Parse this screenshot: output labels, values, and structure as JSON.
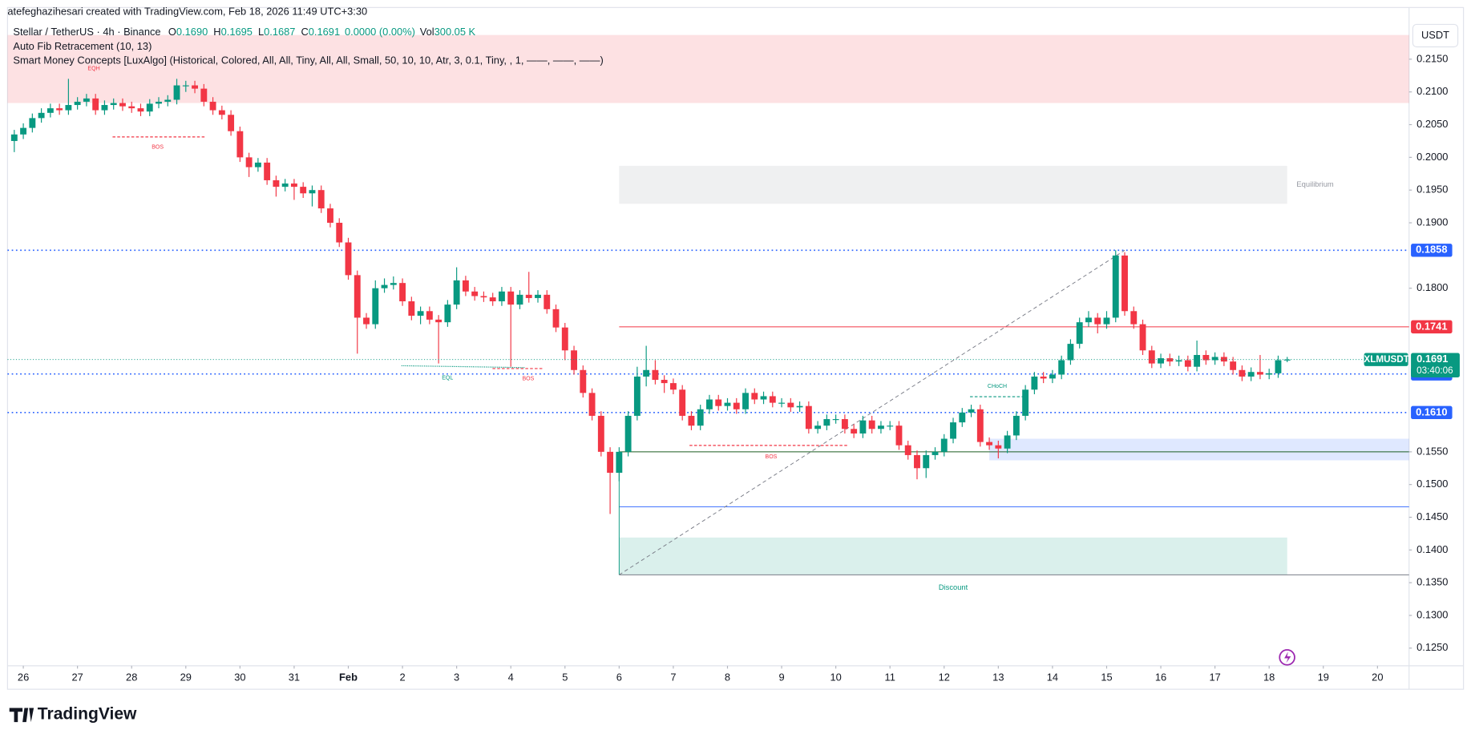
{
  "header": {
    "credit": "atefeghazihesari created with TradingView.com, Feb 18, 2026 11:49 UTC+3:30",
    "symbol": "Stellar / TetherUS · 4h · Binance",
    "ohlc": [
      {
        "key": "O",
        "value": "0.1690"
      },
      {
        "key": "H",
        "value": "0.1695"
      },
      {
        "key": "L",
        "value": "0.1687"
      },
      {
        "key": "C",
        "value": "0.1691"
      }
    ],
    "change": "0.0000 (0.00%)",
    "vol_key": "Vol",
    "vol": "300.05 K",
    "indicators": [
      "Auto Fib Retracement (10, 13)",
      "Smart Money Concepts [LuxAlgo] (Historical, Colored, All, All, Tiny, All, All, Small, 50, 10, 10, Atr, 3, 0.1, Tiny, , 1, ——, ——, ——)"
    ],
    "currency": "USDT"
  },
  "footer": {
    "logo": "TradingView"
  },
  "chart_data": {
    "type": "candlestick",
    "up_color": "#089981",
    "down_color": "#f23645",
    "xlim": [
      -7,
      614
    ],
    "ylim": [
      0.1223,
      0.2229
    ],
    "grid": false,
    "xticks": [
      {
        "value": 0,
        "label": "26"
      },
      {
        "value": 24,
        "label": "27"
      },
      {
        "value": 48,
        "label": "28"
      },
      {
        "value": 72,
        "label": "29"
      },
      {
        "value": 96,
        "label": "30"
      },
      {
        "value": 120,
        "label": "31"
      },
      {
        "value": 144,
        "label": "Feb"
      },
      {
        "value": 168,
        "label": "2"
      },
      {
        "value": 192,
        "label": "3"
      },
      {
        "value": 216,
        "label": "4"
      },
      {
        "value": 240,
        "label": "5"
      },
      {
        "value": 264,
        "label": "6"
      },
      {
        "value": 288,
        "label": "7"
      },
      {
        "value": 312,
        "label": "8"
      },
      {
        "value": 336,
        "label": "9"
      },
      {
        "value": 360,
        "label": "10"
      },
      {
        "value": 384,
        "label": "11"
      },
      {
        "value": 408,
        "label": "12"
      },
      {
        "value": 432,
        "label": "13"
      },
      {
        "value": 456,
        "label": "14"
      },
      {
        "value": 480,
        "label": "15"
      },
      {
        "value": 504,
        "label": "16"
      },
      {
        "value": 528,
        "label": "17"
      },
      {
        "value": 552,
        "label": "18"
      },
      {
        "value": 576,
        "label": "19"
      },
      {
        "value": 600,
        "label": "20"
      }
    ],
    "yticks": [
      {
        "value": 0.215,
        "label": "0.2150"
      },
      {
        "value": 0.21,
        "label": "0.2100"
      },
      {
        "value": 0.205,
        "label": "0.2050"
      },
      {
        "value": 0.2,
        "label": "0.2000"
      },
      {
        "value": 0.195,
        "label": "0.1950"
      },
      {
        "value": 0.19,
        "label": "0.1900"
      },
      {
        "value": 0.18,
        "label": "0.1800"
      },
      {
        "value": 0.155,
        "label": "0.1550"
      },
      {
        "value": 0.15,
        "label": "0.1500"
      },
      {
        "value": 0.145,
        "label": "0.1450"
      },
      {
        "value": 0.14,
        "label": "0.1400"
      },
      {
        "value": 0.135,
        "label": "0.1350"
      },
      {
        "value": 0.13,
        "label": "0.1300"
      },
      {
        "value": 0.125,
        "label": "0.1250"
      }
    ],
    "x": [
      -4,
      0,
      4,
      8,
      12,
      16,
      20,
      24,
      28,
      32,
      36,
      40,
      44,
      48,
      52,
      56,
      60,
      64,
      68,
      72,
      76,
      80,
      84,
      88,
      92,
      96,
      100,
      104,
      108,
      112,
      116,
      120,
      124,
      128,
      132,
      136,
      140,
      144,
      148,
      152,
      156,
      160,
      164,
      168,
      172,
      176,
      180,
      184,
      188,
      192,
      196,
      200,
      204,
      208,
      212,
      216,
      220,
      224,
      228,
      232,
      236,
      240,
      244,
      248,
      252,
      256,
      260,
      264,
      268,
      272,
      276,
      280,
      284,
      288,
      292,
      296,
      300,
      304,
      308,
      312,
      316,
      320,
      324,
      328,
      332,
      336,
      340,
      344,
      348,
      352,
      356,
      360,
      364,
      368,
      372,
      376,
      380,
      384,
      388,
      392,
      396,
      400,
      404,
      408,
      412,
      416,
      420,
      424,
      428,
      432,
      436,
      440,
      444,
      448,
      452,
      456,
      460,
      464,
      468,
      472,
      476,
      480,
      484,
      488,
      492,
      496,
      500,
      504,
      508,
      512,
      516,
      520,
      524,
      528,
      532,
      536,
      540,
      544,
      548,
      552,
      556,
      560
    ],
    "ohlc": [
      [
        0.2025,
        0.2042,
        0.2008,
        0.2035
      ],
      [
        0.2035,
        0.2052,
        0.2028,
        0.2045
      ],
      [
        0.2045,
        0.2067,
        0.2038,
        0.206
      ],
      [
        0.206,
        0.2075,
        0.2053,
        0.2068
      ],
      [
        0.2068,
        0.2082,
        0.2061,
        0.2075
      ],
      [
        0.2075,
        0.2082,
        0.2065,
        0.2072
      ],
      [
        0.2072,
        0.212,
        0.2065,
        0.208
      ],
      [
        0.208,
        0.2092,
        0.2073,
        0.2085
      ],
      [
        0.2085,
        0.2097,
        0.2078,
        0.209
      ],
      [
        0.209,
        0.2097,
        0.2065,
        0.2072
      ],
      [
        0.2072,
        0.2087,
        0.2065,
        0.208
      ],
      [
        0.208,
        0.209,
        0.2073,
        0.2083
      ],
      [
        0.2083,
        0.209,
        0.2071,
        0.2078
      ],
      [
        0.2078,
        0.2085,
        0.2068,
        0.2075
      ],
      [
        0.2075,
        0.2082,
        0.2063,
        0.207
      ],
      [
        0.207,
        0.2089,
        0.2063,
        0.2082
      ],
      [
        0.2082,
        0.2092,
        0.2075,
        0.2085
      ],
      [
        0.2085,
        0.2095,
        0.2078,
        0.2088
      ],
      [
        0.2088,
        0.212,
        0.2081,
        0.211
      ],
      [
        0.211,
        0.2117,
        0.21,
        0.211
      ],
      [
        0.211,
        0.2117,
        0.2098,
        0.2105
      ],
      [
        0.2105,
        0.2112,
        0.2078,
        0.2085
      ],
      [
        0.2085,
        0.2092,
        0.2065,
        0.2072
      ],
      [
        0.2072,
        0.2079,
        0.2058,
        0.2065
      ],
      [
        0.2065,
        0.2072,
        0.2033,
        0.204
      ],
      [
        0.204,
        0.2047,
        0.1993,
        0.2
      ],
      [
        0.2,
        0.2007,
        0.197,
        0.1985
      ],
      [
        0.1985,
        0.1999,
        0.1978,
        0.1992
      ],
      [
        0.1992,
        0.1999,
        0.1958,
        0.1965
      ],
      [
        0.1965,
        0.1972,
        0.194,
        0.1955
      ],
      [
        0.1955,
        0.1967,
        0.1948,
        0.196
      ],
      [
        0.196,
        0.1967,
        0.1935,
        0.1955
      ],
      [
        0.1955,
        0.1962,
        0.1938,
        0.1945
      ],
      [
        0.1945,
        0.1957,
        0.1925,
        0.195
      ],
      [
        0.195,
        0.1957,
        0.1915,
        0.1922
      ],
      [
        0.1922,
        0.1929,
        0.1893,
        0.19
      ],
      [
        0.19,
        0.1907,
        0.1863,
        0.187
      ],
      [
        0.187,
        0.1877,
        0.1813,
        0.182
      ],
      [
        0.182,
        0.1827,
        0.17,
        0.1755
      ],
      [
        0.1755,
        0.1762,
        0.1738,
        0.1745
      ],
      [
        0.1745,
        0.1812,
        0.1738,
        0.18
      ],
      [
        0.18,
        0.1815,
        0.1793,
        0.1805
      ],
      [
        0.1805,
        0.1818,
        0.1798,
        0.1808
      ],
      [
        0.1808,
        0.1815,
        0.1773,
        0.178
      ],
      [
        0.178,
        0.1787,
        0.1751,
        0.1758
      ],
      [
        0.1758,
        0.1772,
        0.1745,
        0.1765
      ],
      [
        0.1765,
        0.1772,
        0.1745,
        0.1752
      ],
      [
        0.1752,
        0.1759,
        0.1685,
        0.1748
      ],
      [
        0.1748,
        0.1782,
        0.1741,
        0.1775
      ],
      [
        0.1775,
        0.1832,
        0.1768,
        0.1812
      ],
      [
        0.1812,
        0.1819,
        0.1788,
        0.1795
      ],
      [
        0.1795,
        0.1802,
        0.1781,
        0.1788
      ],
      [
        0.1788,
        0.1795,
        0.1779,
        0.1786
      ],
      [
        0.1786,
        0.1793,
        0.1773,
        0.178
      ],
      [
        0.178,
        0.1802,
        0.1773,
        0.1795
      ],
      [
        0.1795,
        0.1802,
        0.168,
        0.1775
      ],
      [
        0.1775,
        0.1797,
        0.1768,
        0.179
      ],
      [
        0.179,
        0.1825,
        0.1778,
        0.1785
      ],
      [
        0.1785,
        0.1797,
        0.1778,
        0.179
      ],
      [
        0.179,
        0.1797,
        0.1761,
        0.1768
      ],
      [
        0.1768,
        0.1775,
        0.1733,
        0.174
      ],
      [
        0.174,
        0.1747,
        0.169,
        0.1705
      ],
      [
        0.1705,
        0.1712,
        0.1668,
        0.1675
      ],
      [
        0.1675,
        0.1682,
        0.1633,
        0.164
      ],
      [
        0.164,
        0.1647,
        0.1598,
        0.1605
      ],
      [
        0.1605,
        0.1612,
        0.1543,
        0.155
      ],
      [
        0.155,
        0.1557,
        0.1455,
        0.1518
      ],
      [
        0.1518,
        0.1557,
        0.1505,
        0.155
      ],
      [
        0.155,
        0.1612,
        0.1543,
        0.1605
      ],
      [
        0.1605,
        0.168,
        0.1598,
        0.1665
      ],
      [
        0.1665,
        0.1712,
        0.165,
        0.1675
      ],
      [
        0.1675,
        0.169,
        0.1653,
        0.166
      ],
      [
        0.166,
        0.1667,
        0.164,
        0.1655
      ],
      [
        0.1655,
        0.1662,
        0.1638,
        0.1645
      ],
      [
        0.1645,
        0.1652,
        0.1598,
        0.1605
      ],
      [
        0.1605,
        0.1612,
        0.1583,
        0.159
      ],
      [
        0.159,
        0.1622,
        0.1583,
        0.1615
      ],
      [
        0.1615,
        0.1637,
        0.1608,
        0.163
      ],
      [
        0.163,
        0.1637,
        0.1613,
        0.162
      ],
      [
        0.162,
        0.1632,
        0.1613,
        0.1625
      ],
      [
        0.1625,
        0.1632,
        0.1608,
        0.1615
      ],
      [
        0.1615,
        0.1647,
        0.1608,
        0.164
      ],
      [
        0.164,
        0.1647,
        0.1623,
        0.163
      ],
      [
        0.163,
        0.1642,
        0.1623,
        0.1635
      ],
      [
        0.1635,
        0.1642,
        0.1618,
        0.1625
      ],
      [
        0.1625,
        0.1632,
        0.1618,
        0.1625
      ],
      [
        0.1625,
        0.1632,
        0.1611,
        0.1618
      ],
      [
        0.1618,
        0.1627,
        0.1611,
        0.162
      ],
      [
        0.162,
        0.1627,
        0.1578,
        0.1585
      ],
      [
        0.1585,
        0.1597,
        0.1578,
        0.159
      ],
      [
        0.159,
        0.1607,
        0.1583,
        0.16
      ],
      [
        0.16,
        0.1607,
        0.1593,
        0.16
      ],
      [
        0.16,
        0.1607,
        0.1578,
        0.1585
      ],
      [
        0.1585,
        0.1592,
        0.1571,
        0.1578
      ],
      [
        0.1578,
        0.1605,
        0.1571,
        0.1598
      ],
      [
        0.1598,
        0.1605,
        0.1578,
        0.1585
      ],
      [
        0.1585,
        0.1597,
        0.1578,
        0.159
      ],
      [
        0.159,
        0.1597,
        0.1583,
        0.159
      ],
      [
        0.159,
        0.1597,
        0.1553,
        0.156
      ],
      [
        0.156,
        0.1567,
        0.1538,
        0.1545
      ],
      [
        0.1545,
        0.1552,
        0.1508,
        0.1525
      ],
      [
        0.1525,
        0.1552,
        0.151,
        0.1545
      ],
      [
        0.1545,
        0.1557,
        0.1538,
        0.155
      ],
      [
        0.155,
        0.1577,
        0.1543,
        0.157
      ],
      [
        0.157,
        0.1602,
        0.1563,
        0.1595
      ],
      [
        0.1595,
        0.1617,
        0.1588,
        0.161
      ],
      [
        0.161,
        0.1622,
        0.1603,
        0.1615
      ],
      [
        0.1615,
        0.1622,
        0.1558,
        0.1565
      ],
      [
        0.1565,
        0.1572,
        0.1553,
        0.156
      ],
      [
        0.156,
        0.1567,
        0.154,
        0.1555
      ],
      [
        0.1555,
        0.1582,
        0.1548,
        0.1575
      ],
      [
        0.1575,
        0.1612,
        0.1568,
        0.1605
      ],
      [
        0.1605,
        0.1652,
        0.1598,
        0.1645
      ],
      [
        0.1645,
        0.1672,
        0.1638,
        0.1665
      ],
      [
        0.1665,
        0.1672,
        0.1655,
        0.1662
      ],
      [
        0.1662,
        0.1675,
        0.1655,
        0.1668
      ],
      [
        0.1668,
        0.1697,
        0.1661,
        0.169
      ],
      [
        0.169,
        0.1722,
        0.1683,
        0.1715
      ],
      [
        0.1715,
        0.1755,
        0.1708,
        0.1748
      ],
      [
        0.1748,
        0.1765,
        0.1741,
        0.1755
      ],
      [
        0.1755,
        0.1762,
        0.1731,
        0.1745
      ],
      [
        0.1745,
        0.1765,
        0.1738,
        0.1755
      ],
      [
        0.1755,
        0.1858,
        0.1748,
        0.185
      ],
      [
        0.185,
        0.1855,
        0.1758,
        0.1765
      ],
      [
        0.1765,
        0.1772,
        0.1738,
        0.1745
      ],
      [
        0.1745,
        0.1752,
        0.1698,
        0.1705
      ],
      [
        0.1705,
        0.1712,
        0.1678,
        0.1685
      ],
      [
        0.1685,
        0.17,
        0.1678,
        0.1693
      ],
      [
        0.1693,
        0.17,
        0.1681,
        0.1688
      ],
      [
        0.1688,
        0.1697,
        0.1681,
        0.169
      ],
      [
        0.169,
        0.1697,
        0.1673,
        0.168
      ],
      [
        0.168,
        0.172,
        0.1673,
        0.1698
      ],
      [
        0.1698,
        0.1705,
        0.1683,
        0.169
      ],
      [
        0.169,
        0.1702,
        0.1683,
        0.1695
      ],
      [
        0.1695,
        0.1702,
        0.1681,
        0.1688
      ],
      [
        0.1688,
        0.1695,
        0.1668,
        0.1675
      ],
      [
        0.1675,
        0.1682,
        0.1658,
        0.1665
      ],
      [
        0.1665,
        0.1679,
        0.1658,
        0.1672
      ],
      [
        0.1672,
        0.1698,
        0.1661,
        0.1668
      ],
      [
        0.1668,
        0.1677,
        0.1661,
        0.167
      ],
      [
        0.167,
        0.1697,
        0.1663,
        0.169
      ],
      [
        0.169,
        0.1695,
        0.1687,
        0.1691
      ]
    ],
    "zones": [
      {
        "x": [
          -7,
          614
        ],
        "y": [
          0.2083,
          0.2187
        ],
        "color": "#f23645"
      },
      {
        "x": [
          264,
          560
        ],
        "y": [
          0.1929,
          0.1987
        ],
        "color": "#9598a1",
        "label": "Equilibrium"
      },
      {
        "x": [
          264,
          560
        ],
        "y": [
          0.1362,
          0.1419
        ],
        "color": "#089981",
        "label": "Discount"
      },
      {
        "x": [
          428,
          614
        ],
        "y": [
          0.1537,
          0.157
        ],
        "color": "#2962ff"
      }
    ],
    "fib_lines": [
      {
        "value": 0.155,
        "color": "#1b5e20"
      },
      {
        "value": 0.1466,
        "color": "#2962ff"
      },
      {
        "value": 0.1362,
        "color": "#787b86"
      }
    ],
    "trend": {
      "x": [
        264,
        488
      ],
      "y": [
        0.1362,
        0.1858
      ]
    },
    "price_lines": [
      {
        "value": 0.1858,
        "color": "#2962ff"
      },
      {
        "value": 0.1741,
        "color": "#f23645"
      },
      {
        "value": 0.1669,
        "color": "#2962ff"
      },
      {
        "value": 0.161,
        "label": "0.1610",
        "color": "#2962ff"
      }
    ],
    "last_price": {
      "symbol": "XLMUSDT",
      "value": 0.1691,
      "countdown": "03:40:06",
      "color": "#089981"
    },
    "annotations": [
      "EQH",
      "BOS",
      "EQL",
      "BOS",
      "BOS",
      "CHoCH"
    ]
  }
}
